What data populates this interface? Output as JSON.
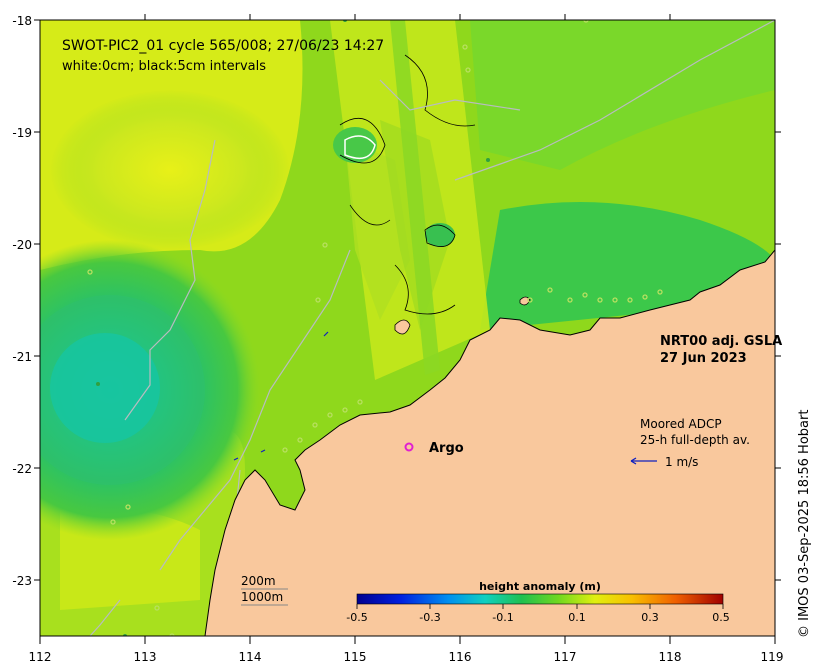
{
  "title_line1": "SWOT-PIC2_01 cycle 565/008; 27/06/23 14:27",
  "title_line2": "white:0cm; black:5cm intervals",
  "product_line1": "NRT00 adj. GSLA",
  "product_line2": "27 Jun 2023",
  "adcp_line1": "Moored ADCP",
  "adcp_line2": "25-h full-depth av.",
  "vector_scale_label": "1 m/s",
  "argo_label": "Argo",
  "isobath_200": "200m",
  "isobath_1000": "1000m",
  "colorbar_title": "height anomaly (m)",
  "colorbar_ticks": [
    "-0.5",
    "-0.3",
    "-0.1",
    "0.1",
    "0.3",
    "0.5"
  ],
  "credit": "© IMOS 03-Sep-2025 18:56 Hobart",
  "x_ticks": [
    "112",
    "113",
    "114",
    "115",
    "116",
    "117",
    "118",
    "119"
  ],
  "y_ticks": [
    "-18",
    "-19",
    "-20",
    "-21",
    "-22",
    "-23"
  ],
  "map_extent": {
    "lon": [
      112,
      119
    ],
    "lat": [
      -23.5,
      -18
    ]
  },
  "colors": {
    "land": "#f9c89d",
    "sea_high": "#e4ef10",
    "sea_mid": "#8ed81a",
    "sea_low": "#30c35a",
    "eddy": "#10c6a0",
    "argo": "#e020d0",
    "vector": "#1020c0"
  }
}
